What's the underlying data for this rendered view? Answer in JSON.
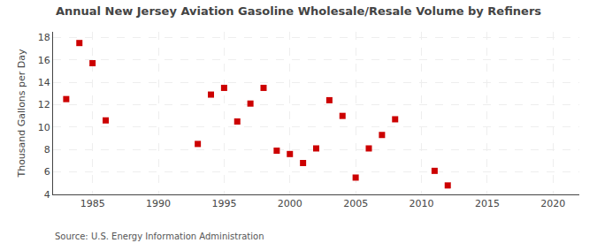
{
  "chart_data": {
    "type": "scatter",
    "title": "Annual New Jersey Aviation Gasoline Wholesale/Resale Volume by Refiners",
    "y_label": "Thousand Gallons per Day",
    "annotations": [
      "Source: U.S. Energy Information Administration"
    ],
    "x": [
      1983,
      1984,
      1985,
      1986,
      1993,
      1994,
      1995,
      1996,
      1997,
      1998,
      1999,
      2000,
      2001,
      2002,
      2003,
      2004,
      2005,
      2006,
      2007,
      2008,
      2011,
      2012
    ],
    "values": [
      12.5,
      17.5,
      15.7,
      10.6,
      8.5,
      12.9,
      13.5,
      10.5,
      12.1,
      13.5,
      7.9,
      7.6,
      6.8,
      8.1,
      12.4,
      11.0,
      5.5,
      8.1,
      9.3,
      10.7,
      6.1,
      4.8
    ],
    "color": "#cc0000",
    "marker": "square",
    "xlim": [
      1982,
      2022
    ],
    "ylim": [
      4,
      18.5
    ],
    "xticks": [
      1985,
      1990,
      1995,
      2000,
      2005,
      2010,
      2015,
      2020
    ],
    "yticks": [
      4,
      6,
      8,
      10,
      12,
      14,
      16,
      18
    ],
    "grid": true
  }
}
